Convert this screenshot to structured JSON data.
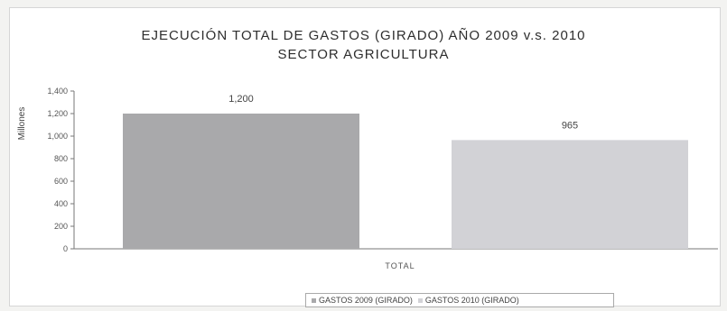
{
  "chart_data": {
    "type": "bar",
    "title": "EJECUCIÓN TOTAL DE GASTOS (GIRADO) AÑO 2009 v.s. 2010",
    "subtitle": "SECTOR AGRICULTURA",
    "ylabel": "Millones",
    "xlabel": "",
    "categories": [
      "TOTAL"
    ],
    "ylim": [
      0,
      1400
    ],
    "yticks": [
      0,
      200,
      400,
      600,
      800,
      1000,
      1200,
      1400
    ],
    "ytick_labels": [
      "0",
      "200",
      "400",
      "600",
      "800",
      "1,000",
      "1,200",
      "1,400"
    ],
    "grid": false,
    "legend_position": "bottom",
    "series": [
      {
        "name": "GASTOS 2009 (GIRADO)",
        "values": [
          1200
        ],
        "label": "1,200",
        "color": "#a9a9ab"
      },
      {
        "name": "GASTOS 2010 (GIRADO)",
        "values": [
          965
        ],
        "label": "965",
        "color": "#d2d2d6"
      }
    ]
  }
}
